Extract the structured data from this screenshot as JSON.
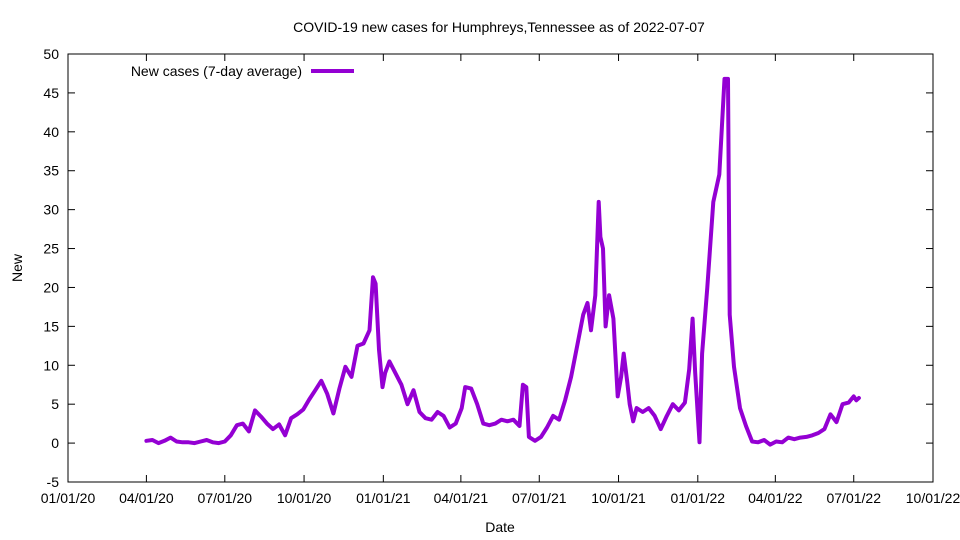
{
  "chart_data": {
    "type": "line",
    "title": "COVID-19 new cases for Humphreys,Tennessee as of 2022-07-07",
    "xlabel": "Date",
    "ylabel": "New",
    "ylim": [
      -5,
      50
    ],
    "yticks": [
      -5,
      0,
      5,
      10,
      15,
      20,
      25,
      30,
      35,
      40,
      45,
      50
    ],
    "xlim": [
      "2020-01-01",
      "2022-10-01"
    ],
    "xticks": [
      {
        "date": "2020-01-01",
        "label": "01/01/20"
      },
      {
        "date": "2020-04-01",
        "label": "04/01/20"
      },
      {
        "date": "2020-07-01",
        "label": "07/01/20"
      },
      {
        "date": "2020-10-01",
        "label": "10/01/20"
      },
      {
        "date": "2021-01-01",
        "label": "01/01/21"
      },
      {
        "date": "2021-04-01",
        "label": "04/01/21"
      },
      {
        "date": "2021-07-01",
        "label": "07/01/21"
      },
      {
        "date": "2021-10-01",
        "label": "10/01/21"
      },
      {
        "date": "2022-01-01",
        "label": "01/01/22"
      },
      {
        "date": "2022-04-01",
        "label": "04/01/22"
      },
      {
        "date": "2022-07-01",
        "label": "07/01/22"
      },
      {
        "date": "2022-10-01",
        "label": "10/01/22"
      }
    ],
    "legend": "top-left",
    "grid": false,
    "series": [
      {
        "name": "New cases (7-day average)",
        "color": "#9400d3",
        "points": [
          [
            "2020-04-01",
            0.3
          ],
          [
            "2020-04-08",
            0.4
          ],
          [
            "2020-04-15",
            0.0
          ],
          [
            "2020-04-22",
            0.3
          ],
          [
            "2020-04-29",
            0.7
          ],
          [
            "2020-05-06",
            0.2
          ],
          [
            "2020-05-13",
            0.1
          ],
          [
            "2020-05-20",
            0.1
          ],
          [
            "2020-05-27",
            0.0
          ],
          [
            "2020-06-03",
            0.2
          ],
          [
            "2020-06-10",
            0.4
          ],
          [
            "2020-06-17",
            0.1
          ],
          [
            "2020-06-24",
            0.0
          ],
          [
            "2020-07-01",
            0.2
          ],
          [
            "2020-07-08",
            1.0
          ],
          [
            "2020-07-15",
            2.3
          ],
          [
            "2020-07-22",
            2.5
          ],
          [
            "2020-07-29",
            1.5
          ],
          [
            "2020-08-05",
            4.2
          ],
          [
            "2020-08-12",
            3.4
          ],
          [
            "2020-08-19",
            2.5
          ],
          [
            "2020-08-26",
            1.8
          ],
          [
            "2020-09-02",
            2.4
          ],
          [
            "2020-09-09",
            1.0
          ],
          [
            "2020-09-16",
            3.2
          ],
          [
            "2020-09-23",
            3.7
          ],
          [
            "2020-09-30",
            4.3
          ],
          [
            "2020-10-07",
            5.6
          ],
          [
            "2020-10-14",
            6.8
          ],
          [
            "2020-10-21",
            8.0
          ],
          [
            "2020-10-28",
            6.3
          ],
          [
            "2020-11-04",
            3.8
          ],
          [
            "2020-11-11",
            7.0
          ],
          [
            "2020-11-18",
            9.8
          ],
          [
            "2020-11-25",
            8.5
          ],
          [
            "2020-12-02",
            12.5
          ],
          [
            "2020-12-09",
            12.8
          ],
          [
            "2020-12-16",
            14.5
          ],
          [
            "2020-12-20",
            21.3
          ],
          [
            "2020-12-23",
            20.5
          ],
          [
            "2020-12-27",
            12.0
          ],
          [
            "2020-12-31",
            7.2
          ],
          [
            "2021-01-03",
            9.0
          ],
          [
            "2021-01-08",
            10.5
          ],
          [
            "2021-01-15",
            9.0
          ],
          [
            "2021-01-22",
            7.5
          ],
          [
            "2021-01-29",
            5.0
          ],
          [
            "2021-02-05",
            6.8
          ],
          [
            "2021-02-12",
            4.0
          ],
          [
            "2021-02-19",
            3.2
          ],
          [
            "2021-02-26",
            3.0
          ],
          [
            "2021-03-05",
            4.0
          ],
          [
            "2021-03-12",
            3.5
          ],
          [
            "2021-03-19",
            2.0
          ],
          [
            "2021-03-26",
            2.5
          ],
          [
            "2021-04-02",
            4.5
          ],
          [
            "2021-04-06",
            7.2
          ],
          [
            "2021-04-13",
            7.0
          ],
          [
            "2021-04-20",
            5.0
          ],
          [
            "2021-04-27",
            2.5
          ],
          [
            "2021-05-04",
            2.3
          ],
          [
            "2021-05-11",
            2.5
          ],
          [
            "2021-05-18",
            3.0
          ],
          [
            "2021-05-25",
            2.8
          ],
          [
            "2021-06-01",
            3.0
          ],
          [
            "2021-06-08",
            2.2
          ],
          [
            "2021-06-12",
            7.5
          ],
          [
            "2021-06-16",
            7.2
          ],
          [
            "2021-06-19",
            0.8
          ],
          [
            "2021-06-26",
            0.3
          ],
          [
            "2021-07-03",
            0.8
          ],
          [
            "2021-07-10",
            2.0
          ],
          [
            "2021-07-17",
            3.5
          ],
          [
            "2021-07-24",
            3.0
          ],
          [
            "2021-07-31",
            5.5
          ],
          [
            "2021-08-07",
            8.5
          ],
          [
            "2021-08-14",
            12.5
          ],
          [
            "2021-08-21",
            16.5
          ],
          [
            "2021-08-26",
            18.0
          ],
          [
            "2021-08-30",
            14.5
          ],
          [
            "2021-09-04",
            19.0
          ],
          [
            "2021-09-08",
            31.0
          ],
          [
            "2021-09-10",
            26.5
          ],
          [
            "2021-09-13",
            25.0
          ],
          [
            "2021-09-16",
            15.0
          ],
          [
            "2021-09-20",
            19.0
          ],
          [
            "2021-09-25",
            16.0
          ],
          [
            "2021-09-30",
            6.0
          ],
          [
            "2021-10-04",
            8.5
          ],
          [
            "2021-10-07",
            11.5
          ],
          [
            "2021-10-11",
            8.0
          ],
          [
            "2021-10-14",
            5.0
          ],
          [
            "2021-10-18",
            2.8
          ],
          [
            "2021-10-22",
            4.5
          ],
          [
            "2021-10-29",
            4.0
          ],
          [
            "2021-11-05",
            4.5
          ],
          [
            "2021-11-12",
            3.5
          ],
          [
            "2021-11-19",
            1.8
          ],
          [
            "2021-11-26",
            3.5
          ],
          [
            "2021-12-03",
            5.0
          ],
          [
            "2021-12-10",
            4.2
          ],
          [
            "2021-12-17",
            5.2
          ],
          [
            "2021-12-22",
            9.5
          ],
          [
            "2021-12-26",
            16.0
          ],
          [
            "2021-12-29",
            9.0
          ],
          [
            "2022-01-03",
            0.1
          ],
          [
            "2022-01-06",
            11.5
          ],
          [
            "2022-01-12",
            20.0
          ],
          [
            "2022-01-19",
            31.0
          ],
          [
            "2022-01-26",
            34.5
          ],
          [
            "2022-02-01",
            46.8
          ],
          [
            "2022-02-05",
            46.8
          ],
          [
            "2022-02-07",
            16.5
          ],
          [
            "2022-02-12",
            9.8
          ],
          [
            "2022-02-19",
            4.5
          ],
          [
            "2022-02-26",
            2.2
          ],
          [
            "2022-03-05",
            0.2
          ],
          [
            "2022-03-12",
            0.1
          ],
          [
            "2022-03-19",
            0.4
          ],
          [
            "2022-03-26",
            -0.2
          ],
          [
            "2022-04-02",
            0.2
          ],
          [
            "2022-04-09",
            0.1
          ],
          [
            "2022-04-16",
            0.7
          ],
          [
            "2022-04-23",
            0.5
          ],
          [
            "2022-04-30",
            0.7
          ],
          [
            "2022-05-07",
            0.8
          ],
          [
            "2022-05-14",
            1.0
          ],
          [
            "2022-05-21",
            1.3
          ],
          [
            "2022-05-28",
            1.8
          ],
          [
            "2022-06-04",
            3.7
          ],
          [
            "2022-06-11",
            2.7
          ],
          [
            "2022-06-18",
            5.0
          ],
          [
            "2022-06-25",
            5.2
          ],
          [
            "2022-07-01",
            6.0
          ],
          [
            "2022-07-04",
            5.5
          ],
          [
            "2022-07-07",
            5.8
          ]
        ]
      }
    ]
  }
}
